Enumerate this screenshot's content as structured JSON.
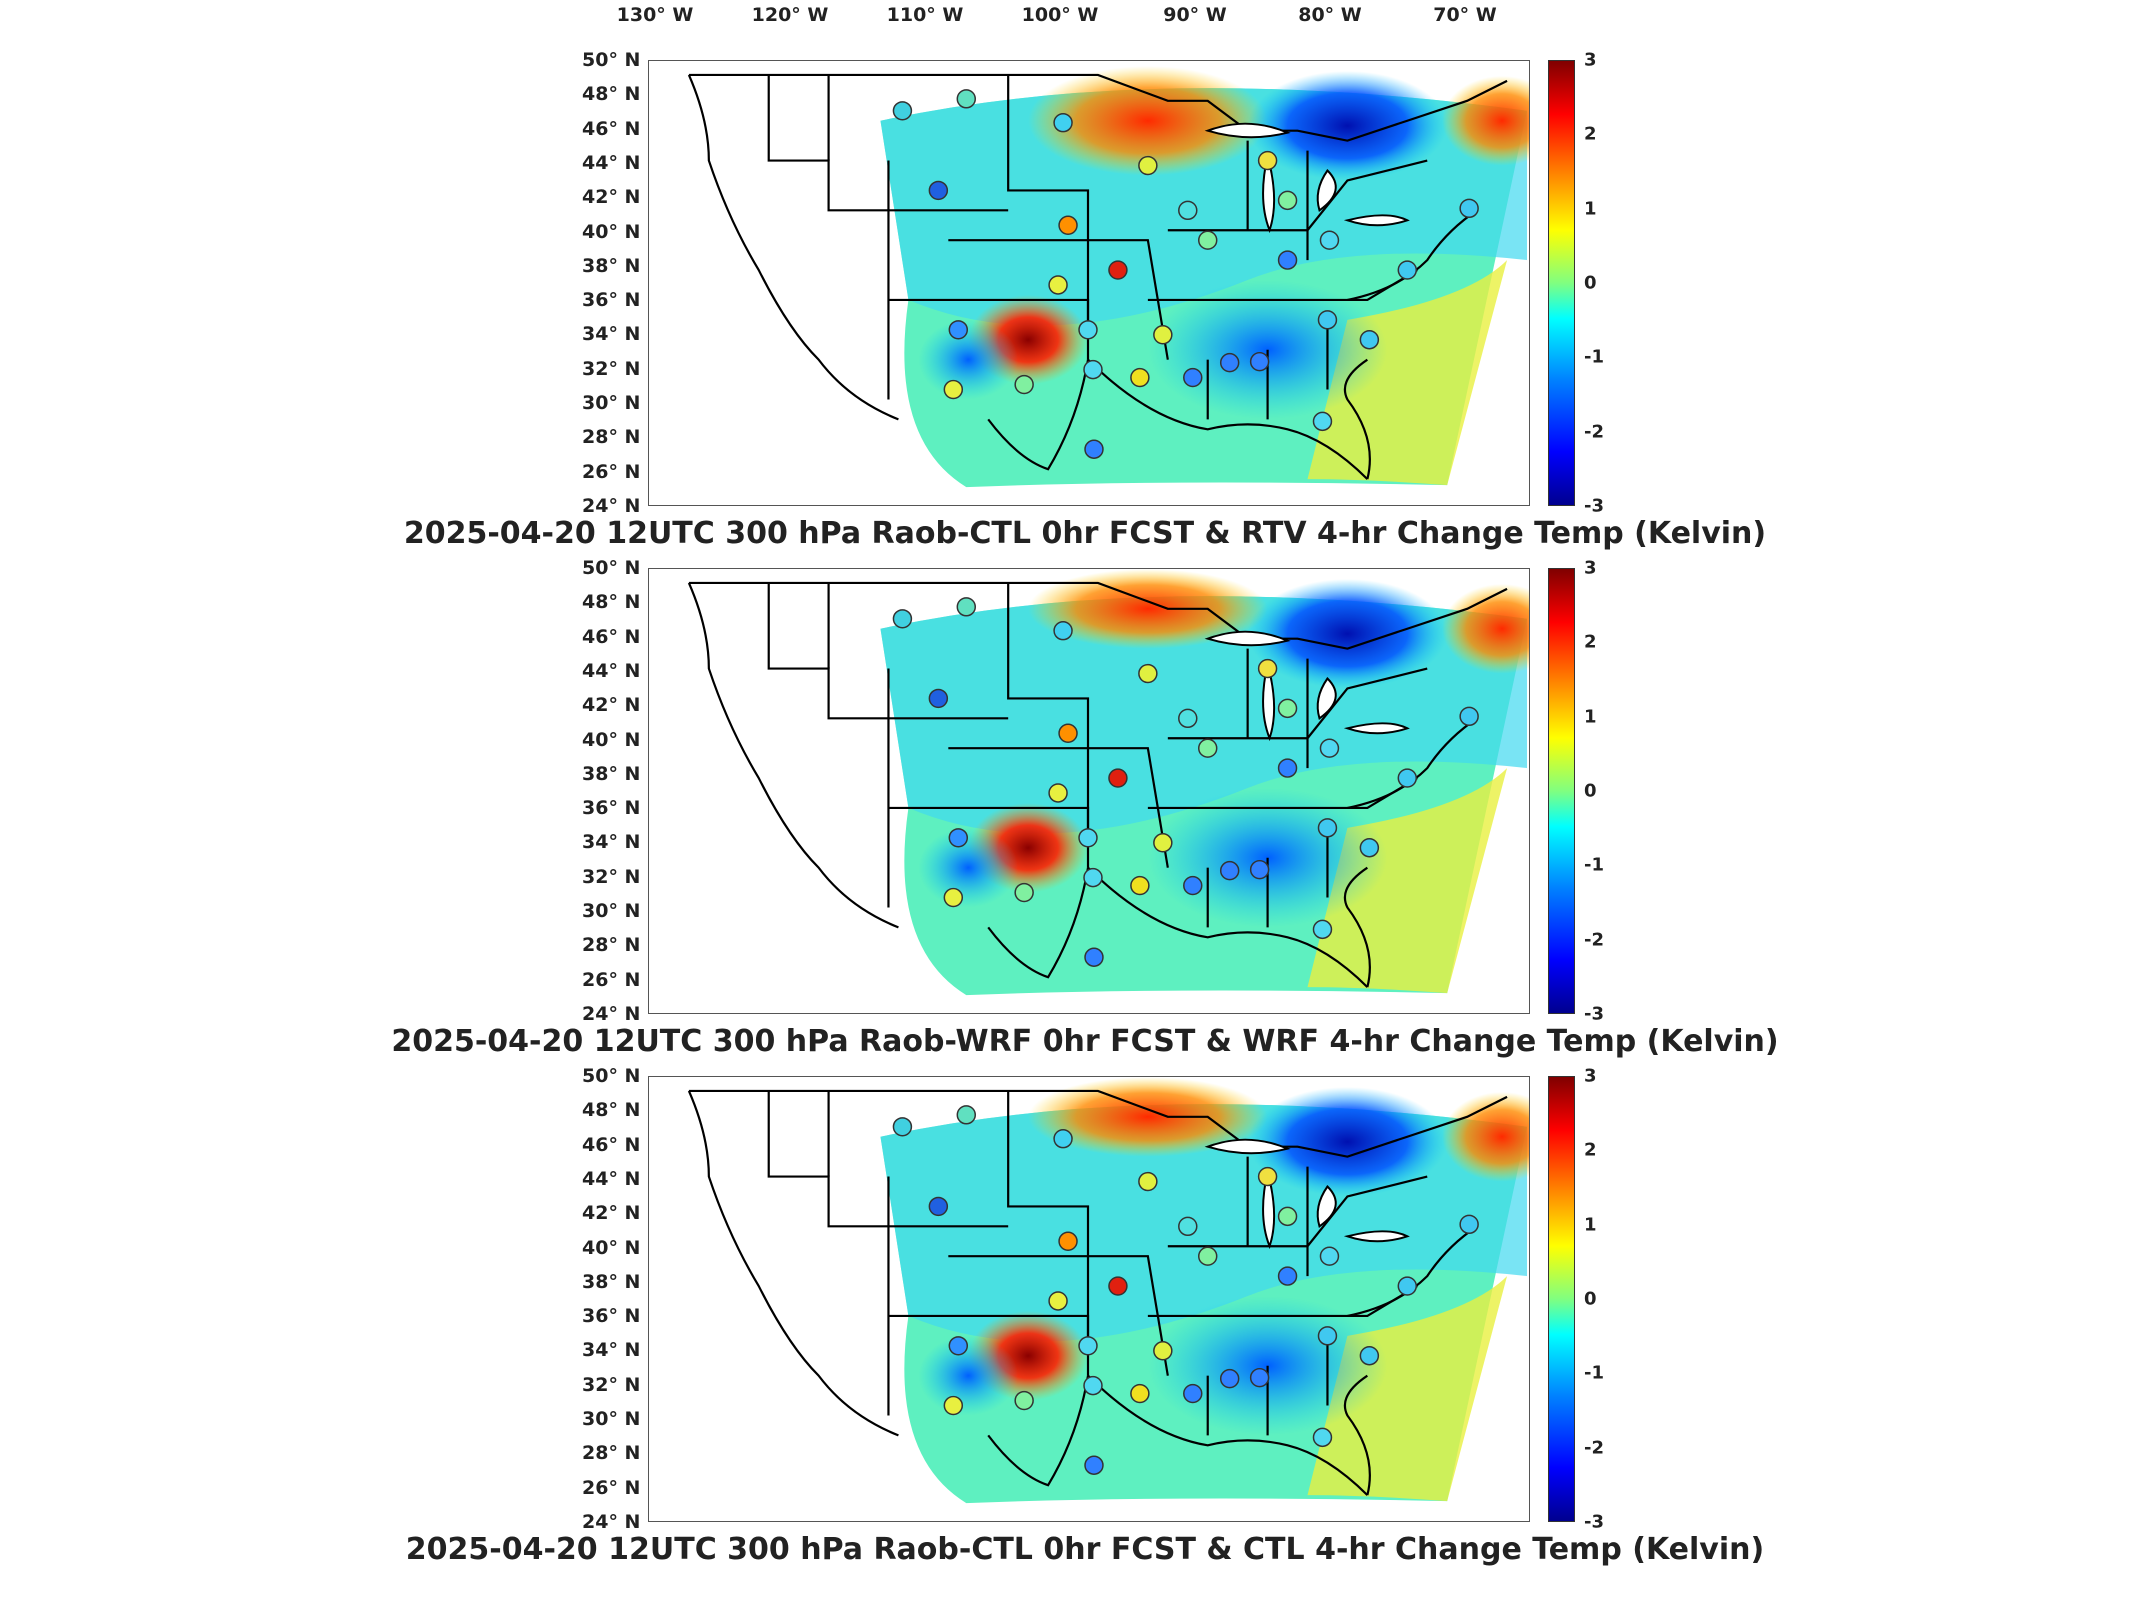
{
  "lon_labels": [
    "130° W",
    "120° W",
    "110° W",
    "100° W",
    "90° W",
    "80° W",
    "70° W"
  ],
  "lat_labels": [
    "50° N",
    "48° N",
    "46° N",
    "44° N",
    "42° N",
    "40° N",
    "38° N",
    "36° N",
    "34° N",
    "32° N",
    "30° N",
    "28° N",
    "26° N",
    "24° N"
  ],
  "colorbar_ticks": [
    "3",
    "2",
    "1",
    "0",
    "-1",
    "-2",
    "-3"
  ],
  "colorbar_range": [
    -3,
    3
  ],
  "colors": {
    "cold_extreme": "#00008f",
    "cold": "#0080ff",
    "neutral": "#80ff80",
    "warm": "#ffff00",
    "warm_extreme": "#800000"
  },
  "panels": [
    {
      "title": "2025-04-20 12UTC 300 hPa Raob-CTL 0hr FCST & RTV 4-hr Change Temp (Kelvin)"
    },
    {
      "title": "2025-04-20 12UTC 300 hPa Raob-WRF 0hr FCST & WRF 4-hr Change Temp (Kelvin)"
    },
    {
      "title": "2025-04-20 12UTC 300 hPa Raob-CTL 0hr FCST & CTL 4-hr Change Temp (Kelvin)"
    }
  ]
}
